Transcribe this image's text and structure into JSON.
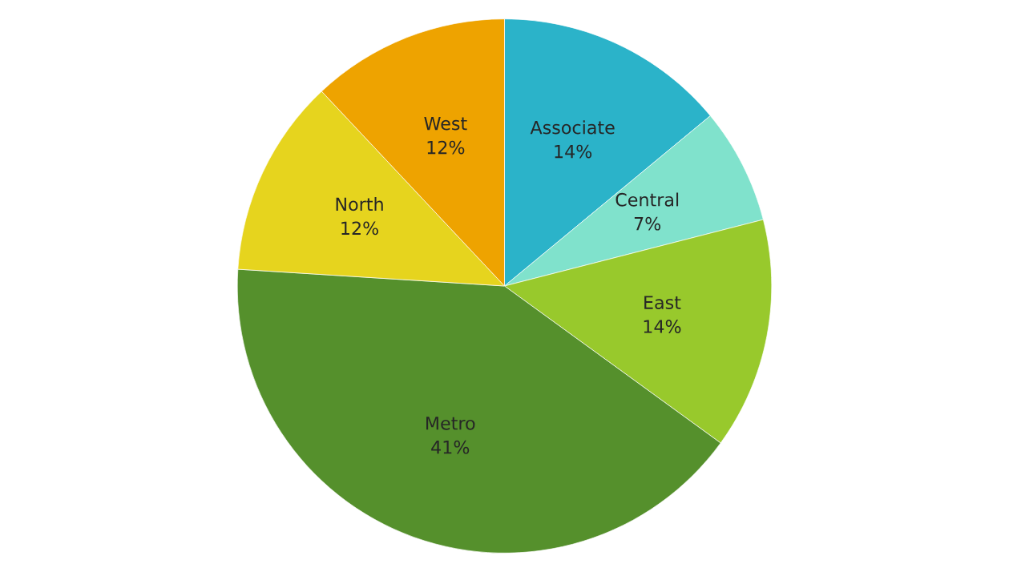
{
  "chart_data": {
    "type": "pie",
    "categories": [
      "Associate",
      "Central",
      "East",
      "Metro",
      "North",
      "West"
    ],
    "values": [
      14,
      7,
      14,
      41,
      12,
      12
    ],
    "value_labels": [
      "14%",
      "7%",
      "14%",
      "41%",
      "12%",
      "12%"
    ],
    "colors": [
      "#2bb3c9",
      "#80e2cc",
      "#98c92c",
      "#55902c",
      "#e6d41e",
      "#eea300"
    ]
  }
}
